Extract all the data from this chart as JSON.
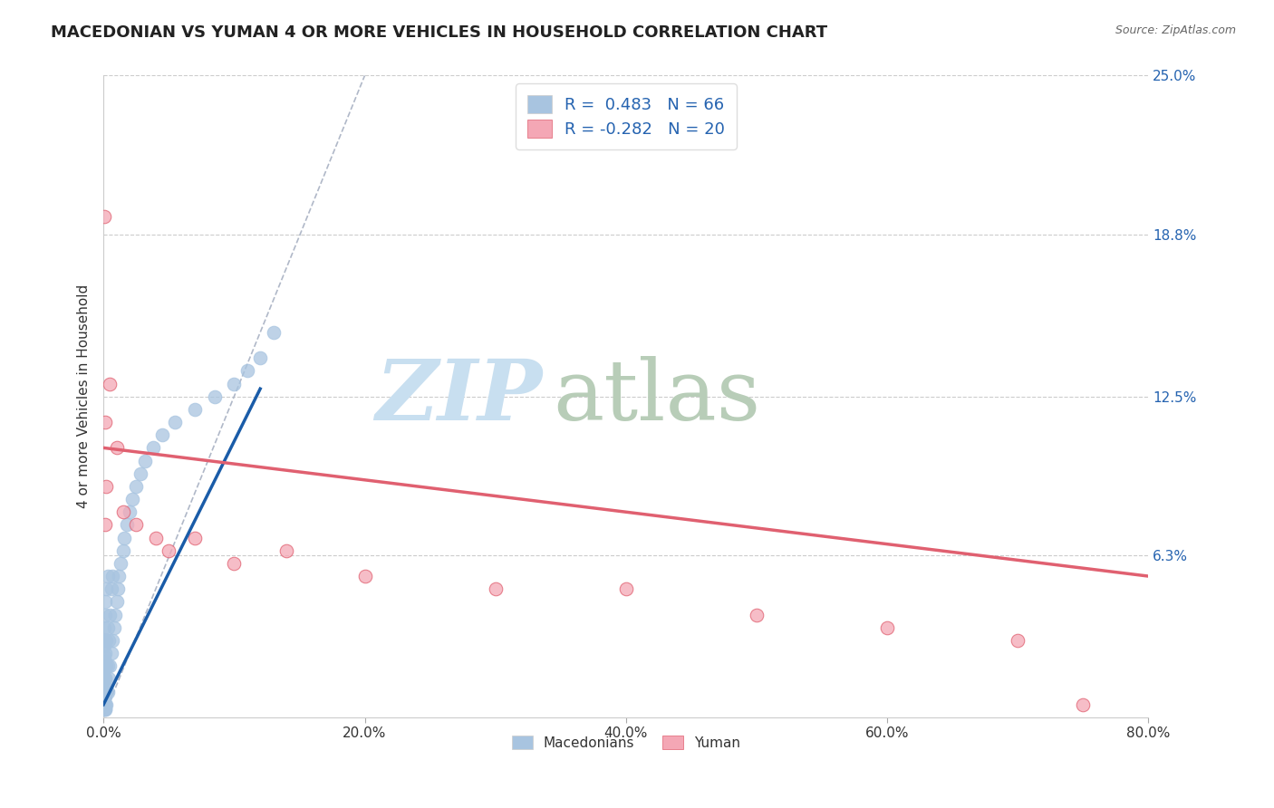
{
  "title": "MACEDONIAN VS YUMAN 4 OR MORE VEHICLES IN HOUSEHOLD CORRELATION CHART",
  "source": "Source: ZipAtlas.com",
  "ylabel": "4 or more Vehicles in Household",
  "xmin": 0.0,
  "xmax": 80.0,
  "ymin": 0.0,
  "ymax": 25.0,
  "right_ytick_labels": [
    "25.0%",
    "18.8%",
    "12.5%",
    "6.3%"
  ],
  "right_ytick_values": [
    25.0,
    18.8,
    12.5,
    6.3
  ],
  "xtick_labels": [
    "0.0%",
    "20.0%",
    "40.0%",
    "60.0%",
    "80.0%"
  ],
  "xtick_values": [
    0.0,
    20.0,
    40.0,
    60.0,
    80.0
  ],
  "macedonian_color": "#a8c4e0",
  "macedonian_line_color": "#1a5ca8",
  "yuman_color": "#f4a7b5",
  "yuman_line_color": "#e06070",
  "mac_line_x0": 0.0,
  "mac_line_y0": 0.5,
  "mac_line_x1": 12.0,
  "mac_line_y1": 12.8,
  "yum_line_x0": 0.0,
  "yum_line_y0": 10.5,
  "yum_line_x1": 80.0,
  "yum_line_y1": 5.5,
  "ref_line_x0": 0.0,
  "ref_line_y0": 0.0,
  "ref_line_x1": 20.0,
  "ref_line_y1": 25.0,
  "macedonian_scatter_x": [
    0.05,
    0.05,
    0.05,
    0.05,
    0.05,
    0.05,
    0.05,
    0.05,
    0.05,
    0.05,
    0.1,
    0.1,
    0.1,
    0.1,
    0.1,
    0.1,
    0.1,
    0.1,
    0.1,
    0.15,
    0.15,
    0.15,
    0.15,
    0.15,
    0.15,
    0.15,
    0.2,
    0.2,
    0.2,
    0.2,
    0.2,
    0.3,
    0.3,
    0.3,
    0.3,
    0.4,
    0.4,
    0.5,
    0.5,
    0.6,
    0.6,
    0.7,
    0.7,
    0.8,
    0.9,
    1.0,
    1.1,
    1.2,
    1.3,
    1.5,
    1.6,
    1.8,
    2.0,
    2.2,
    2.5,
    2.8,
    3.2,
    3.8,
    4.5,
    5.5,
    7.0,
    8.5,
    10.0,
    11.0,
    12.0,
    13.0
  ],
  "macedonian_scatter_y": [
    0.3,
    0.5,
    0.8,
    1.0,
    1.3,
    1.6,
    2.0,
    2.4,
    2.8,
    3.5,
    0.3,
    0.5,
    0.8,
    1.0,
    1.5,
    2.0,
    2.5,
    3.0,
    4.0,
    0.3,
    0.5,
    1.0,
    1.5,
    2.2,
    3.0,
    4.5,
    0.5,
    1.0,
    2.0,
    3.0,
    5.0,
    1.0,
    2.0,
    3.5,
    5.5,
    1.5,
    3.0,
    2.0,
    4.0,
    2.5,
    5.0,
    3.0,
    5.5,
    3.5,
    4.0,
    4.5,
    5.0,
    5.5,
    6.0,
    6.5,
    7.0,
    7.5,
    8.0,
    8.5,
    9.0,
    9.5,
    10.0,
    10.5,
    11.0,
    11.5,
    12.0,
    12.5,
    13.0,
    13.5,
    14.0,
    15.0
  ],
  "yuman_scatter_x": [
    0.05,
    0.1,
    0.15,
    0.2,
    0.5,
    1.0,
    1.5,
    2.5,
    4.0,
    5.0,
    7.0,
    10.0,
    14.0,
    20.0,
    30.0,
    40.0,
    50.0,
    60.0,
    70.0,
    75.0
  ],
  "yuman_scatter_y": [
    19.5,
    7.5,
    11.5,
    9.0,
    13.0,
    10.5,
    8.0,
    7.5,
    7.0,
    6.5,
    7.0,
    6.0,
    6.5,
    5.5,
    5.0,
    5.0,
    4.0,
    3.5,
    3.0,
    0.5
  ]
}
